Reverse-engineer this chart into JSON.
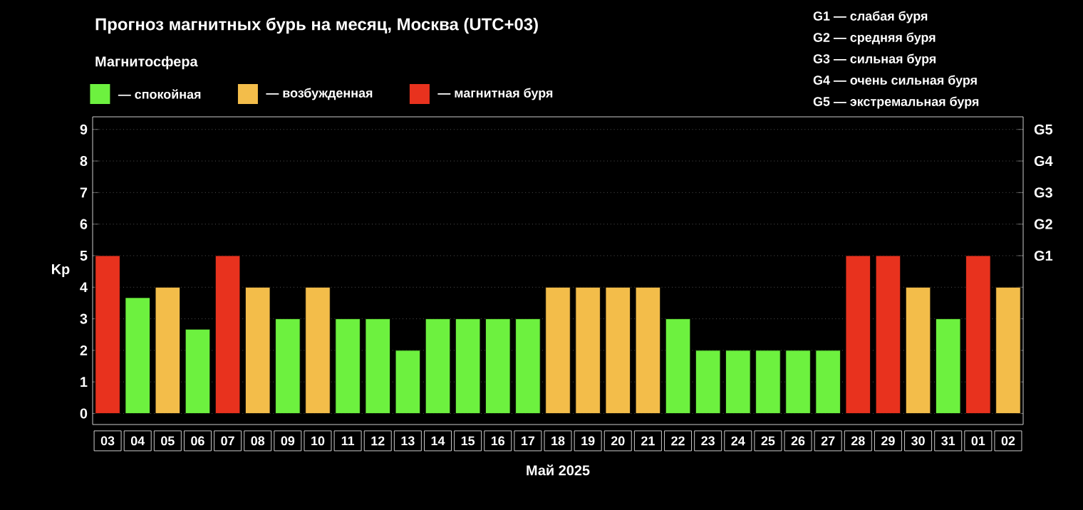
{
  "chart_data": {
    "type": "bar",
    "title": "Прогноз магнитных бурь на месяц, Москва (UTC+03)",
    "xlabel": "Май 2025",
    "ylabel": "Kp",
    "legend_title": "Магнитосфера",
    "categories": [
      "03",
      "04",
      "05",
      "06",
      "07",
      "08",
      "09",
      "10",
      "11",
      "12",
      "13",
      "14",
      "15",
      "16",
      "17",
      "18",
      "19",
      "20",
      "21",
      "22",
      "23",
      "24",
      "25",
      "26",
      "27",
      "28",
      "29",
      "30",
      "31",
      "01",
      "02"
    ],
    "series": [
      {
        "name": "— спокойная",
        "color": "#6df13f",
        "values": [
          null,
          3.67,
          null,
          2.67,
          null,
          null,
          3,
          null,
          3,
          3,
          2,
          3,
          3,
          3,
          3,
          null,
          null,
          null,
          null,
          3,
          2,
          2,
          2,
          2,
          2,
          null,
          null,
          null,
          3,
          null,
          null
        ]
      },
      {
        "name": "— возбужденная",
        "color": "#f3bd4a",
        "values": [
          null,
          null,
          4,
          null,
          null,
          4,
          null,
          4,
          null,
          null,
          null,
          null,
          null,
          null,
          null,
          4,
          4,
          4,
          4,
          null,
          null,
          null,
          null,
          null,
          null,
          null,
          null,
          4,
          null,
          null,
          4
        ]
      },
      {
        "name": "— магнитная буря",
        "color": "#e8321e",
        "values": [
          5,
          null,
          null,
          null,
          5,
          null,
          null,
          null,
          null,
          null,
          null,
          null,
          null,
          null,
          null,
          null,
          null,
          null,
          null,
          null,
          null,
          null,
          null,
          null,
          null,
          5,
          5,
          null,
          null,
          5,
          null
        ]
      }
    ],
    "ylim": [
      -0.35,
      9.4
    ],
    "yticks": [
      0,
      1,
      2,
      3,
      4,
      5,
      6,
      7,
      8,
      9
    ],
    "grid": "y",
    "legend": "top left",
    "annotations": [
      "G1",
      "G2",
      "G3",
      "G4",
      "G5",
      "G1 — слабая буря",
      "G2 — средняя буря",
      "G3 — сильная буря",
      "G4 — очень сильная буря",
      "G5 — экстремальная буря"
    ]
  }
}
